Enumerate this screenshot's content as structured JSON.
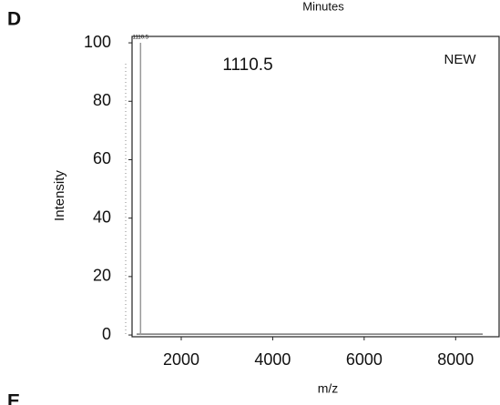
{
  "panel_label": "D",
  "next_panel_label": "E",
  "previous_axis_label": "Minutes",
  "chart_data": {
    "type": "spectrum",
    "x_label": "m/z",
    "y_label": "Intensity",
    "annotations": [
      "1110.5",
      "NEW"
    ],
    "peaks": {
      "x": [
        1110.5
      ],
      "values": [
        100
      ]
    },
    "color": "#999999",
    "xlim": [
      925,
      8950
    ],
    "ylim": [
      -0.6,
      102.2
    ],
    "xticks": [
      2000,
      4000,
      6000,
      8000
    ],
    "yticks": [
      0,
      20,
      40,
      60,
      80,
      100
    ]
  }
}
